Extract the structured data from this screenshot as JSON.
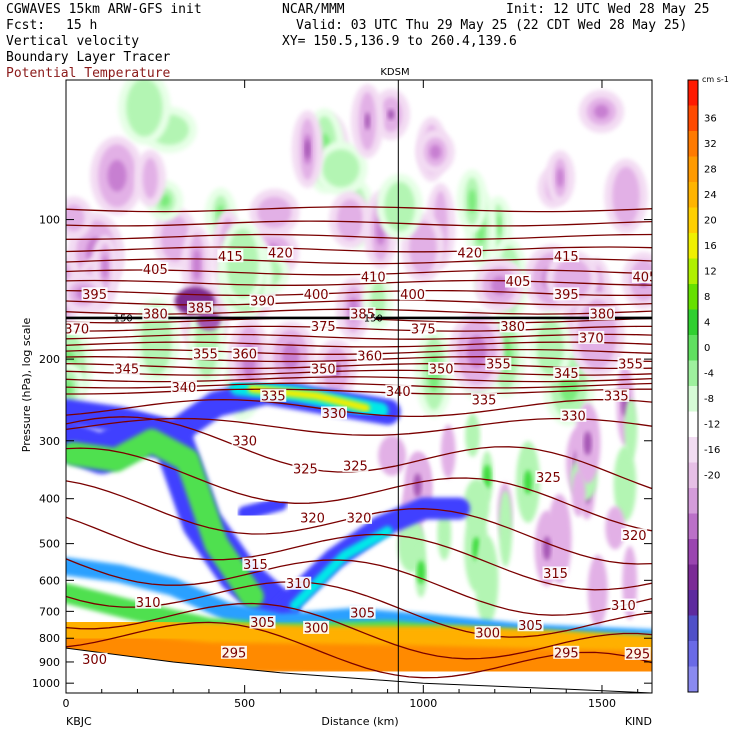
{
  "header": {
    "model_line": "CGWAVES 15km ARW-GFS init",
    "fcst_label": "Fcst:",
    "fcst_value": "15 h",
    "field1": "Vertical velocity",
    "field2": "Boundary Layer Tracer",
    "field3": "Potential Temperature",
    "org": "NCAR/MMM",
    "init": "Init: 12 UTC Wed 28 May 25",
    "valid": "Valid: 03 UTC Thu 29 May 25 (22 CDT Wed 28 May 25)",
    "xy": "XY= 150.5,136.9 to 260.4,139.6"
  },
  "colors": {
    "theta": "#7a0000",
    "up": [
      "#e6ffe6",
      "#b3f5b3",
      "#7aeb7a",
      "#3cdc3c"
    ],
    "down": [
      "#f3dcf3",
      "#e2b0e6",
      "#c77fd1",
      "#a455b4",
      "#7e2b8e"
    ],
    "tracer": [
      "#4040ff",
      "#2aa0ff",
      "#00e8e8",
      "#50e050",
      "#f0f000",
      "#ffb000",
      "#ff8a00"
    ]
  },
  "chart_data": {
    "type": "contour cross-section",
    "title": "KDSM",
    "xlabel": "Distance (km)",
    "ylabel": "Pressure (hPa), log scale",
    "x_start_label": "KBJC",
    "x_end_label": "KIND",
    "x_range_km": [
      0,
      1640
    ],
    "x_ticks": [
      0,
      500,
      1000,
      1500
    ],
    "station_marker_km": 930,
    "y_range_hpa": [
      50,
      1050
    ],
    "y_ticks": [
      100,
      200,
      300,
      400,
      500,
      600,
      700,
      800,
      900,
      1000
    ],
    "theta_labels": [
      {
        "v": "415",
        "x": 460,
        "p": 120
      },
      {
        "v": "420",
        "x": 600,
        "p": 118
      },
      {
        "v": "405",
        "x": 250,
        "p": 128
      },
      {
        "v": "395",
        "x": 80,
        "p": 145
      },
      {
        "v": "390",
        "x": 550,
        "p": 150
      },
      {
        "v": "400",
        "x": 700,
        "p": 145
      },
      {
        "v": "410",
        "x": 860,
        "p": 133
      },
      {
        "v": "400",
        "x": 970,
        "p": 145
      },
      {
        "v": "420",
        "x": 1130,
        "p": 118
      },
      {
        "v": "415",
        "x": 1400,
        "p": 120
      },
      {
        "v": "405",
        "x": 1265,
        "p": 136
      },
      {
        "v": "395",
        "x": 1400,
        "p": 145
      },
      {
        "v": "405",
        "x": 1620,
        "p": 133
      },
      {
        "v": "380",
        "x": 250,
        "p": 160
      },
      {
        "v": "385",
        "x": 375,
        "p": 155
      },
      {
        "v": "385",
        "x": 830,
        "p": 160
      },
      {
        "v": "380",
        "x": 1500,
        "p": 160
      },
      {
        "v": "370",
        "x": 30,
        "p": 172
      },
      {
        "v": "375",
        "x": 720,
        "p": 170
      },
      {
        "v": "375",
        "x": 1000,
        "p": 172
      },
      {
        "v": "380",
        "x": 1250,
        "p": 170
      },
      {
        "v": "370",
        "x": 1470,
        "p": 180
      },
      {
        "v": "355",
        "x": 390,
        "p": 195
      },
      {
        "v": "360",
        "x": 500,
        "p": 195
      },
      {
        "v": "360",
        "x": 850,
        "p": 197
      },
      {
        "v": "355",
        "x": 1210,
        "p": 205
      },
      {
        "v": "355",
        "x": 1580,
        "p": 205
      },
      {
        "v": "345",
        "x": 170,
        "p": 210
      },
      {
        "v": "350",
        "x": 720,
        "p": 210
      },
      {
        "v": "350",
        "x": 1050,
        "p": 210
      },
      {
        "v": "345",
        "x": 1400,
        "p": 215
      },
      {
        "v": "340",
        "x": 330,
        "p": 230
      },
      {
        "v": "335",
        "x": 580,
        "p": 240
      },
      {
        "v": "340",
        "x": 930,
        "p": 235
      },
      {
        "v": "335",
        "x": 1170,
        "p": 245
      },
      {
        "v": "335",
        "x": 1540,
        "p": 240
      },
      {
        "v": "330",
        "x": 750,
        "p": 262
      },
      {
        "v": "330",
        "x": 1420,
        "p": 265
      },
      {
        "v": "330",
        "x": 500,
        "p": 300
      },
      {
        "v": "325",
        "x": 670,
        "p": 345
      },
      {
        "v": "325",
        "x": 810,
        "p": 340
      },
      {
        "v": "325",
        "x": 1350,
        "p": 360
      },
      {
        "v": "320",
        "x": 690,
        "p": 440
      },
      {
        "v": "320",
        "x": 820,
        "p": 440
      },
      {
        "v": "320",
        "x": 1590,
        "p": 480
      },
      {
        "v": "315",
        "x": 530,
        "p": 555
      },
      {
        "v": "315",
        "x": 1370,
        "p": 580
      },
      {
        "v": "310",
        "x": 650,
        "p": 610
      },
      {
        "v": "310",
        "x": 230,
        "p": 670
      },
      {
        "v": "310",
        "x": 1560,
        "p": 680
      },
      {
        "v": "305",
        "x": 550,
        "p": 740
      },
      {
        "v": "305",
        "x": 830,
        "p": 705
      },
      {
        "v": "305",
        "x": 1300,
        "p": 750
      },
      {
        "v": "300",
        "x": 700,
        "p": 760
      },
      {
        "v": "300",
        "x": 1180,
        "p": 780
      },
      {
        "v": "295",
        "x": 470,
        "p": 860
      },
      {
        "v": "295",
        "x": 1400,
        "p": 860
      },
      {
        "v": "295",
        "x": 1600,
        "p": 865
      },
      {
        "v": "300",
        "x": 80,
        "p": 890
      }
    ],
    "pressure_marks": [
      {
        "v": "150",
        "x": 160,
        "p": 166
      },
      {
        "v": "150",
        "x": 860,
        "p": 166
      }
    ],
    "colorbar": {
      "unit": "cm s-1",
      "labels": [
        "36",
        "32",
        "28",
        "24",
        "20",
        "16",
        "12",
        "8",
        "4",
        "0",
        "-4",
        "-8",
        "-12",
        "-16",
        "-20"
      ],
      "colors": [
        "#ff1a00",
        "#ff4a00",
        "#ff7a00",
        "#ff9a00",
        "#ffb400",
        "#ffd000",
        "#f0f000",
        "#b0f000",
        "#66e000",
        "#30d030",
        "#60e060",
        "#9ef09e",
        "#d6fbd6",
        "#ffffff",
        "#f2dcf2",
        "#e6bfe6",
        "#d49cda",
        "#bb70c8",
        "#9a45b0",
        "#7b2a96",
        "#5e2a9e",
        "#5050c8",
        "#6a6ae6",
        "#8a8af0"
      ]
    }
  }
}
